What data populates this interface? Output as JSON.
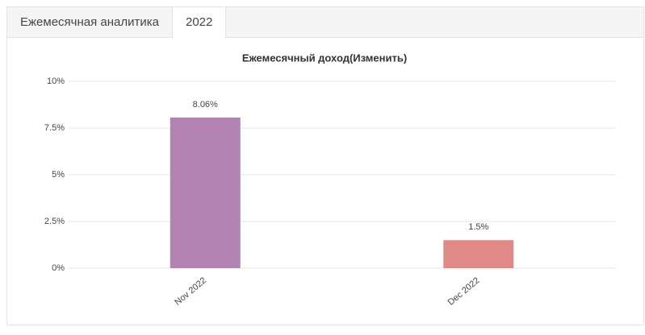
{
  "tabs": [
    "Ежемесячная аналитика",
    "2022"
  ],
  "active_tab": 1,
  "chart_data": {
    "type": "bar",
    "title": "Ежемесячный доход(Изменить)",
    "categories": [
      "Nov 2022",
      "Dec 2022"
    ],
    "values": [
      8.06,
      1.5
    ],
    "value_labels": [
      "8.06%",
      "1.5%"
    ],
    "colors": [
      "#b384b3",
      "#e08a88"
    ],
    "ylim": [
      0,
      10
    ],
    "yticks": [
      {
        "value": 0,
        "label": "0%"
      },
      {
        "value": 2.5,
        "label": "2.5%"
      },
      {
        "value": 5,
        "label": "5%"
      },
      {
        "value": 7.5,
        "label": "7.5%"
      },
      {
        "value": 10,
        "label": "10%"
      }
    ],
    "grid": true
  }
}
